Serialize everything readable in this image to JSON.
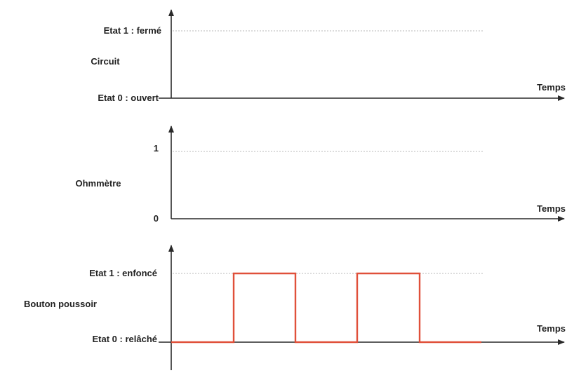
{
  "colors": {
    "axis": "#2a2a2a",
    "guide": "#b8b8b8",
    "signal": "#e0503a",
    "text": "#222222"
  },
  "panels": [
    {
      "id": "circuit",
      "title": "Circuit",
      "high_label": "Etat 1 : fermé",
      "low_label": "Etat 0 : ouvert",
      "time_label": "Temps",
      "signal": []
    },
    {
      "id": "ohmmetre",
      "title": "Ohmmètre",
      "high_label": "1",
      "low_label": "0",
      "time_label": "Temps",
      "signal": []
    },
    {
      "id": "bouton",
      "title": "Bouton poussoir",
      "high_label": "Etat 1 : enfoncé",
      "low_label": "Etat 0 : relâché",
      "time_label": "Temps",
      "signal": [
        0,
        1,
        0,
        1,
        0
      ]
    }
  ]
}
